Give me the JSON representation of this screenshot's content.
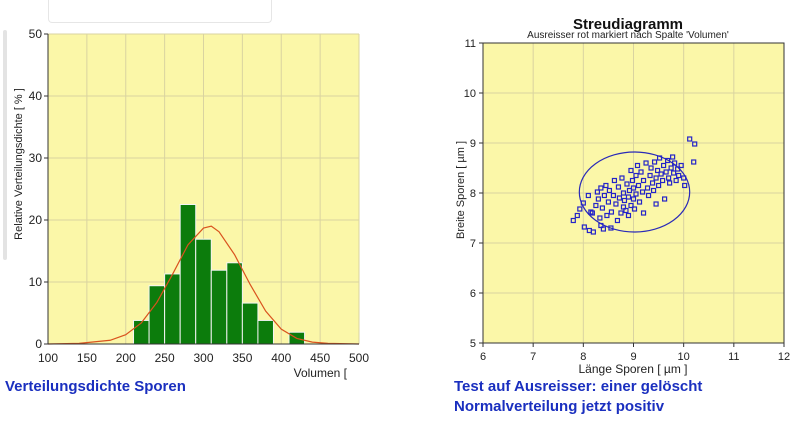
{
  "colors": {
    "plot_bg": "#fbf7a8",
    "grid": "#d9d3a0",
    "bar_fill": "#0c7c0c",
    "bar_edge": "#f4f4f4",
    "density_curve": "#d9531e",
    "scatter_marker": "#2424c8",
    "ellipse": "#2a2ab8",
    "caption_text": "#1a2fbf"
  },
  "captions": {
    "left": "Verteilungsdichte Sporen",
    "right_line1": "Test auf Ausreisser: einer gelöscht",
    "right_line2": "Normalverteilung jetzt positiv"
  },
  "chart_data": [
    {
      "type": "bar",
      "title": "",
      "xlabel": "Volumen [",
      "ylabel": "Relative Verteilungsdichte [ % ]",
      "xlim": [
        100,
        500
      ],
      "ylim": [
        0,
        50
      ],
      "xticks": [
        100,
        150,
        200,
        250,
        300,
        350,
        400,
        450,
        500
      ],
      "yticks": [
        0,
        10,
        20,
        30,
        40,
        50
      ],
      "bin_width": 20,
      "bins": [
        {
          "x": 220,
          "value": 3.8
        },
        {
          "x": 240,
          "value": 9.4
        },
        {
          "x": 260,
          "value": 11.3
        },
        {
          "x": 280,
          "value": 22.5
        },
        {
          "x": 300,
          "value": 16.9
        },
        {
          "x": 320,
          "value": 11.9
        },
        {
          "x": 340,
          "value": 13.1
        },
        {
          "x": 360,
          "value": 6.6
        },
        {
          "x": 380,
          "value": 3.8
        },
        {
          "x": 420,
          "value": 1.9
        }
      ],
      "density_curve": {
        "x": [
          100,
          140,
          180,
          200,
          220,
          240,
          260,
          280,
          300,
          310,
          320,
          340,
          360,
          380,
          400,
          420,
          440,
          460,
          500
        ],
        "y": [
          0,
          0.1,
          0.6,
          1.5,
          3.4,
          6.7,
          11.2,
          16.0,
          18.7,
          19.0,
          18.1,
          14.4,
          9.6,
          5.3,
          2.4,
          0.9,
          0.3,
          0.1,
          0
        ]
      },
      "grid": true
    },
    {
      "type": "scatter",
      "title": "Streudiagramm",
      "subtitle": "Ausreisser rot markiert nach Spalte 'Volumen'",
      "xlabel": "Länge Sporen [ µm ]",
      "ylabel": "Breite Sporen [ µm ]",
      "xlim": [
        6,
        12
      ],
      "ylim": [
        5,
        11
      ],
      "xticks": [
        6,
        7,
        8,
        9,
        10,
        11,
        12
      ],
      "yticks": [
        5,
        6,
        7,
        8,
        9,
        10,
        11
      ],
      "grid": true,
      "ellipse": {
        "cx": 9.02,
        "cy": 8.02,
        "rx": 1.1,
        "ry": 0.8
      },
      "points": [
        [
          7.8,
          7.45
        ],
        [
          7.88,
          7.55
        ],
        [
          7.93,
          7.68
        ],
        [
          8.0,
          7.8
        ],
        [
          8.02,
          7.32
        ],
        [
          8.1,
          7.95
        ],
        [
          8.12,
          7.25
        ],
        [
          8.18,
          7.6
        ],
        [
          8.2,
          7.22
        ],
        [
          8.25,
          7.75
        ],
        [
          8.28,
          8.02
        ],
        [
          8.3,
          7.88
        ],
        [
          8.33,
          7.5
        ],
        [
          8.35,
          8.1
        ],
        [
          8.38,
          7.7
        ],
        [
          8.4,
          7.28
        ],
        [
          8.42,
          7.95
        ],
        [
          8.45,
          8.15
        ],
        [
          8.47,
          7.55
        ],
        [
          8.5,
          7.82
        ],
        [
          8.52,
          8.05
        ],
        [
          8.55,
          7.3
        ],
        [
          8.56,
          7.62
        ],
        [
          8.6,
          7.95
        ],
        [
          8.62,
          8.25
        ],
        [
          8.65,
          7.78
        ],
        [
          8.68,
          7.45
        ],
        [
          8.7,
          8.12
        ],
        [
          8.72,
          7.9
        ],
        [
          8.75,
          7.6
        ],
        [
          8.77,
          8.3
        ],
        [
          8.8,
          7.72
        ],
        [
          8.8,
          8.0
        ],
        [
          8.82,
          7.85
        ],
        [
          8.85,
          7.65
        ],
        [
          8.87,
          8.18
        ],
        [
          8.9,
          7.92
        ],
        [
          8.9,
          7.55
        ],
        [
          8.92,
          8.05
        ],
        [
          8.95,
          7.75
        ],
        [
          8.95,
          8.45
        ],
        [
          8.98,
          8.25
        ],
        [
          9.0,
          7.88
        ],
        [
          9.0,
          8.1
        ],
        [
          9.02,
          7.68
        ],
        [
          9.05,
          8.35
        ],
        [
          9.05,
          7.98
        ],
        [
          9.08,
          8.55
        ],
        [
          9.1,
          8.15
        ],
        [
          9.12,
          7.82
        ],
        [
          9.15,
          8.42
        ],
        [
          9.18,
          8.02
        ],
        [
          9.2,
          7.6
        ],
        [
          9.2,
          8.25
        ],
        [
          9.25,
          8.6
        ],
        [
          9.28,
          8.1
        ],
        [
          9.3,
          7.95
        ],
        [
          9.33,
          8.35
        ],
        [
          9.35,
          8.5
        ],
        [
          9.38,
          8.2
        ],
        [
          9.4,
          8.05
        ],
        [
          9.42,
          8.62
        ],
        [
          9.45,
          8.3
        ],
        [
          9.48,
          8.45
        ],
        [
          9.5,
          8.15
        ],
        [
          9.52,
          8.7
        ],
        [
          9.55,
          8.38
        ],
        [
          9.58,
          8.25
        ],
        [
          9.6,
          8.55
        ],
        [
          9.62,
          7.88
        ],
        [
          9.65,
          8.42
        ],
        [
          9.68,
          8.65
        ],
        [
          9.7,
          8.3
        ],
        [
          9.72,
          8.2
        ],
        [
          9.75,
          8.5
        ],
        [
          9.78,
          8.72
        ],
        [
          9.8,
          8.4
        ],
        [
          9.82,
          8.6
        ],
        [
          9.85,
          8.25
        ],
        [
          9.88,
          8.48
        ],
        [
          9.9,
          8.35
        ],
        [
          9.95,
          8.55
        ],
        [
          10.0,
          8.3
        ],
        [
          10.02,
          8.15
        ],
        [
          10.12,
          9.08
        ],
        [
          10.22,
          8.98
        ],
        [
          10.2,
          8.62
        ],
        [
          9.45,
          7.78
        ],
        [
          8.35,
          7.35
        ],
        [
          8.15,
          7.62
        ]
      ]
    }
  ]
}
